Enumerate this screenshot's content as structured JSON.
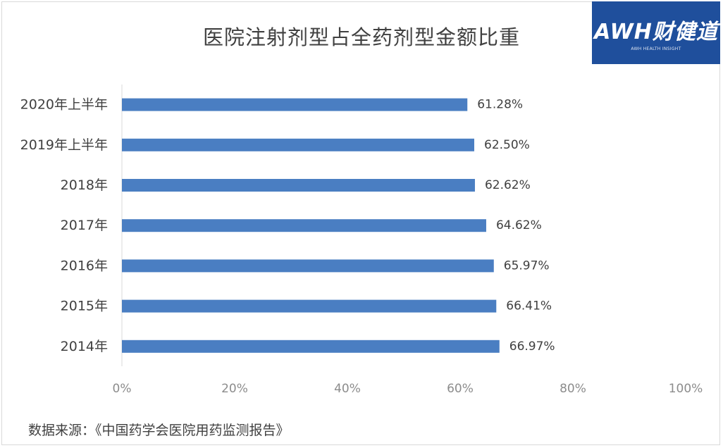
{
  "logo": {
    "text": "AWH财健道",
    "subtext": "AWH HEALTH INSIGHT"
  },
  "chart_data": {
    "type": "bar",
    "orientation": "horizontal",
    "title": "医院注射剂型占全药剂型金额比重",
    "categories": [
      "2020年上半年",
      "2019年上半年",
      "2018年",
      "2017年",
      "2016年",
      "2015年",
      "2014年"
    ],
    "values": [
      61.28,
      62.5,
      62.62,
      64.62,
      65.97,
      66.41,
      66.97
    ],
    "value_labels": [
      "61.28%",
      "62.50%",
      "62.62%",
      "64.62%",
      "65.97%",
      "66.41%",
      "66.97%"
    ],
    "xlim": [
      0,
      100
    ],
    "x_ticks": [
      0,
      20,
      40,
      60,
      80,
      100
    ],
    "x_tick_labels": [
      "0%",
      "20%",
      "40%",
      "60%",
      "80%",
      "100%"
    ],
    "xlabel": "",
    "ylabel": "",
    "grid": false,
    "bar_color": "#4a7ec2"
  },
  "footer": {
    "source": "数据来源：《中国药学会医院用药监测报告》"
  }
}
